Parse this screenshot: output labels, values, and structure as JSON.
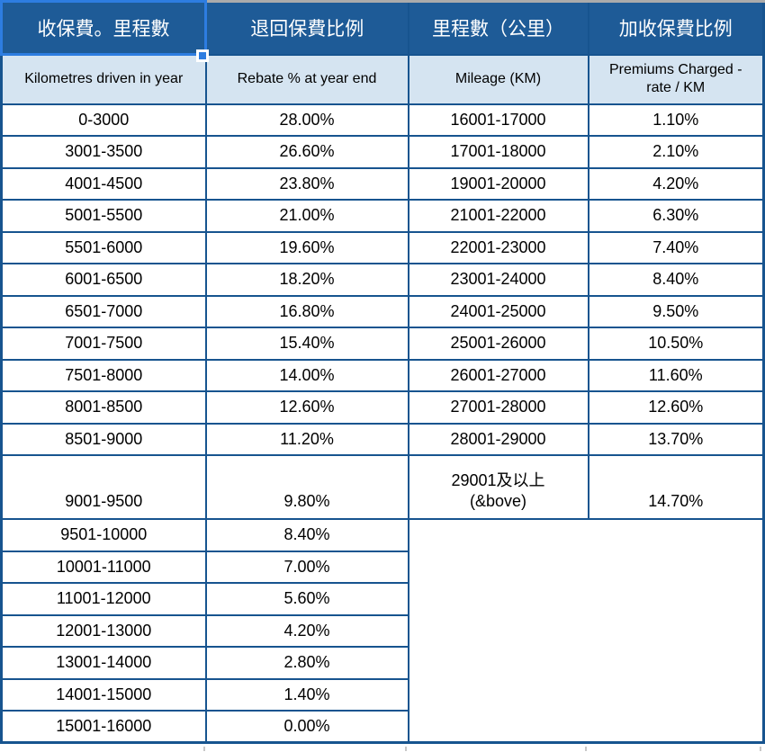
{
  "colors": {
    "header_bg": "#1E5B97",
    "subheader_bg": "#D5E4F1",
    "grid": "#17548F",
    "selection": "#2D7DE1",
    "top_strip": "#ABABAB",
    "stub": "#C8C8C8",
    "text": "#000000"
  },
  "headers": {
    "zh": [
      "收保費。里程數",
      "退回保費比例",
      "里程數（公里）",
      "加收保費比例"
    ],
    "en": [
      "Kilometres driven in year",
      "Rebate % at year end",
      "Mileage (KM)",
      "Premiums Charged -\nrate / KM"
    ]
  },
  "left_rows": [
    {
      "range": "0-3000",
      "rebate": "28.00%"
    },
    {
      "range": "3001-3500",
      "rebate": "26.60%"
    },
    {
      "range": "4001-4500",
      "rebate": "23.80%"
    },
    {
      "range": "5001-5500",
      "rebate": "21.00%"
    },
    {
      "range": "5501-6000",
      "rebate": "19.60%"
    },
    {
      "range": "6001-6500",
      "rebate": "18.20%"
    },
    {
      "range": "6501-7000",
      "rebate": "16.80%"
    },
    {
      "range": "7001-7500",
      "rebate": "15.40%"
    },
    {
      "range": "7501-8000",
      "rebate": "14.00%"
    },
    {
      "range": "8001-8500",
      "rebate": "12.60%"
    },
    {
      "range": "8501-9000",
      "rebate": "11.20%"
    },
    {
      "range": "9001-9500",
      "rebate": "9.80%"
    },
    {
      "range": "9501-10000",
      "rebate": "8.40%"
    },
    {
      "range": "10001-11000",
      "rebate": "7.00%"
    },
    {
      "range": "11001-12000",
      "rebate": "5.60%"
    },
    {
      "range": "12001-13000",
      "rebate": "4.20%"
    },
    {
      "range": "13001-14000",
      "rebate": "2.80%"
    },
    {
      "range": "14001-15000",
      "rebate": "1.40%"
    },
    {
      "range": "15001-16000",
      "rebate": "0.00%"
    }
  ],
  "right_rows": [
    {
      "range": "16001-17000",
      "rate": "1.10%"
    },
    {
      "range": "17001-18000",
      "rate": "2.10%"
    },
    {
      "range": "19001-20000",
      "rate": "4.20%"
    },
    {
      "range": "21001-22000",
      "rate": "6.30%"
    },
    {
      "range": "22001-23000",
      "rate": "7.40%"
    },
    {
      "range": "23001-24000",
      "rate": "8.40%"
    },
    {
      "range": "24001-25000",
      "rate": "9.50%"
    },
    {
      "range": "25001-26000",
      "rate": "10.50%"
    },
    {
      "range": "26001-27000",
      "rate": "11.60%"
    },
    {
      "range": "27001-28000",
      "rate": "12.60%"
    },
    {
      "range": "28001-29000",
      "rate": "13.70%"
    },
    {
      "range": "29001及以上\n(&bove)",
      "rate": "14.70%"
    }
  ]
}
